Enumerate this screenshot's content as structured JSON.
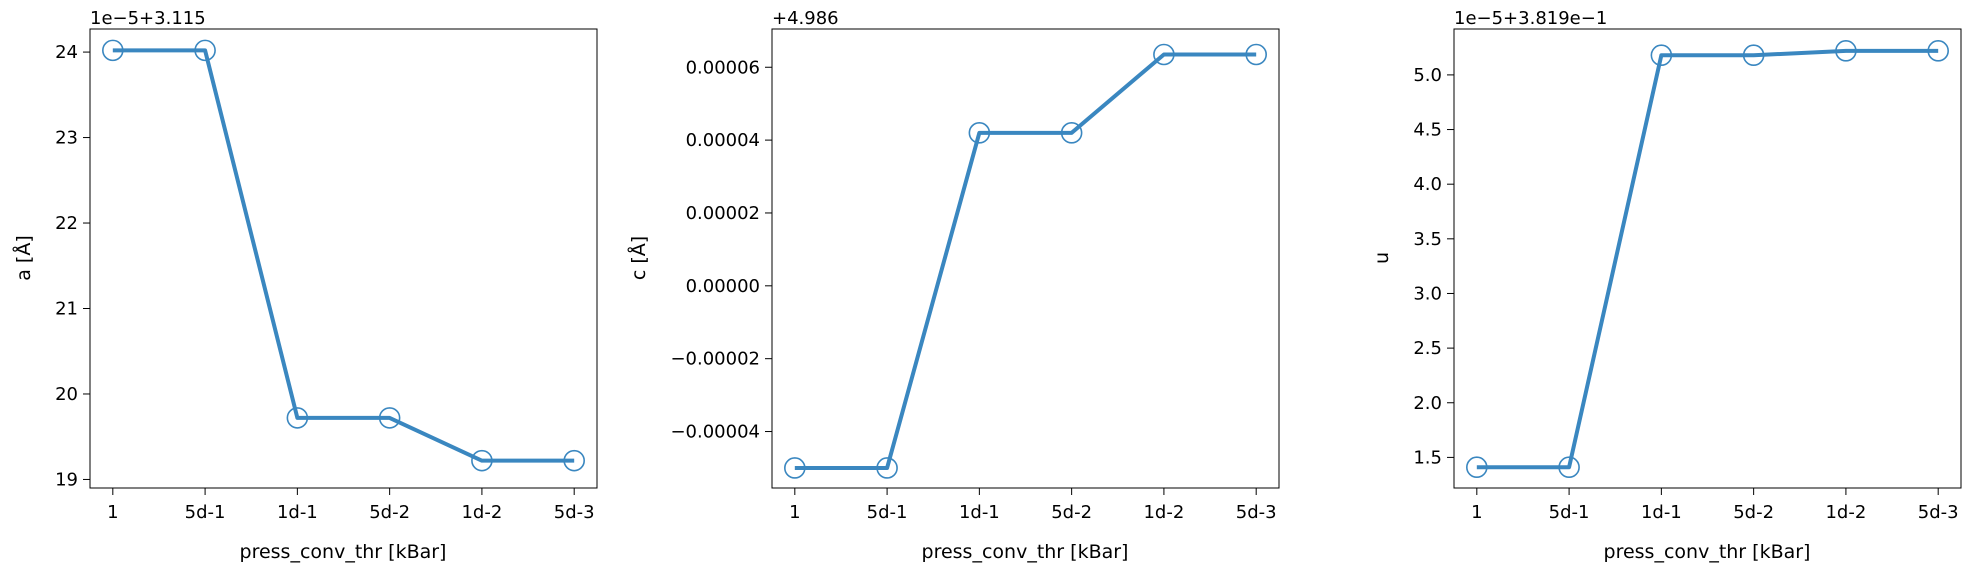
{
  "chart_data": [
    {
      "type": "line",
      "categories": [
        "1",
        "5d-1",
        "1d-1",
        "5d-2",
        "1d-2",
        "5d-3"
      ],
      "xlabel": "press_conv_thr [kBar]",
      "ylabel": "a [Å]",
      "offset_text": "1e−5+3.115",
      "values": [
        24.02,
        24.02,
        19.72,
        19.72,
        19.22,
        19.22
      ],
      "ylim": [
        18.9,
        24.27
      ],
      "yticks": [
        19,
        20,
        21,
        22,
        23,
        24
      ],
      "ytick_labels": [
        "19",
        "20",
        "21",
        "22",
        "23",
        "24"
      ],
      "grid": false,
      "color": "#3a87c0"
    },
    {
      "type": "line",
      "categories": [
        "1",
        "5d-1",
        "1d-1",
        "5d-2",
        "1d-2",
        "5d-3"
      ],
      "xlabel": "press_conv_thr [kBar]",
      "ylabel": "c [Å]",
      "offset_text": "+4.986",
      "values": [
        -5e-05,
        -5e-05,
        4.2e-05,
        4.2e-05,
        6.35e-05,
        6.35e-05
      ],
      "ylim": [
        -5.55e-05,
        7.05e-05
      ],
      "yticks": [
        -4e-05,
        -2e-05,
        0.0,
        2e-05,
        4e-05,
        6e-05
      ],
      "ytick_labels": [
        "−0.00004",
        "−0.00002",
        "0.00000",
        "0.00002",
        "0.00004",
        "0.00006"
      ],
      "grid": false,
      "color": "#3a87c0"
    },
    {
      "type": "line",
      "categories": [
        "1",
        "5d-1",
        "1d-1",
        "5d-2",
        "1d-2",
        "5d-3"
      ],
      "xlabel": "press_conv_thr [kBar]",
      "ylabel": "u",
      "offset_text": "1e−5+3.819e−1",
      "values": [
        1.41,
        1.41,
        5.18,
        5.18,
        5.22,
        5.22
      ],
      "ylim": [
        1.22,
        5.42
      ],
      "yticks": [
        1.5,
        2.0,
        2.5,
        3.0,
        3.5,
        4.0,
        4.5,
        5.0
      ],
      "ytick_labels": [
        "1.5",
        "2.0",
        "2.5",
        "3.0",
        "3.5",
        "4.0",
        "4.5",
        "5.0"
      ],
      "grid": false,
      "color": "#3a87c0"
    }
  ]
}
